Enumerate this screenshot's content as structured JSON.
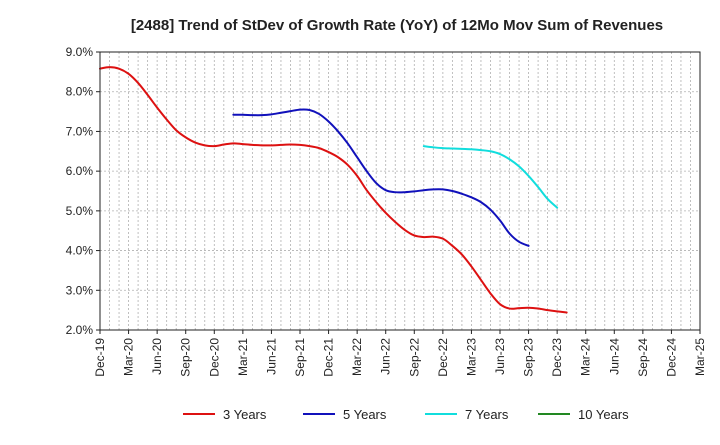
{
  "chart_data": {
    "type": "line",
    "title": "[2488]  Trend of StDev of Growth Rate (YoY) of 12Mo Mov Sum of Revenues",
    "xlabel": "",
    "ylabel": "",
    "ylim": [
      2.0,
      9.0
    ],
    "yticks": [
      "9.0%",
      "8.0%",
      "7.0%",
      "6.0%",
      "5.0%",
      "4.0%",
      "3.0%",
      "2.0%"
    ],
    "ytick_values": [
      9,
      8,
      7,
      6,
      5,
      4,
      3,
      2
    ],
    "xticks": [
      "Dec-19",
      "Mar-20",
      "Jun-20",
      "Sep-20",
      "Dec-20",
      "Mar-21",
      "Jun-21",
      "Sep-21",
      "Dec-21",
      "Mar-22",
      "Jun-22",
      "Sep-22",
      "Dec-22",
      "Mar-23",
      "Jun-23",
      "Sep-23",
      "Dec-23",
      "Mar-24",
      "Jun-24",
      "Sep-24",
      "Dec-24",
      "Mar-25"
    ],
    "grid": true,
    "legend_position": "bottom",
    "series": [
      {
        "name": "3 Years",
        "color": "#dd1111",
        "values": [
          8.58,
          8.62,
          8.58,
          8.45,
          8.22,
          7.92,
          7.6,
          7.3,
          7.03,
          6.85,
          6.72,
          6.65,
          6.63,
          6.67,
          6.7,
          6.68,
          6.66,
          6.65,
          6.65,
          6.66,
          6.67,
          6.66,
          6.63,
          6.58,
          6.48,
          6.35,
          6.16,
          5.88,
          5.52,
          5.22,
          4.95,
          4.72,
          4.52,
          4.38,
          4.34,
          4.35,
          4.3,
          4.12,
          3.9,
          3.6,
          3.26,
          2.92,
          2.65,
          2.54,
          2.55,
          2.56,
          2.54,
          2.5,
          2.47,
          2.44
        ]
      },
      {
        "name": "5 Years",
        "color": "#1111bb",
        "values": [
          null,
          null,
          null,
          null,
          null,
          null,
          null,
          null,
          null,
          null,
          null,
          null,
          null,
          null,
          7.42,
          7.42,
          7.41,
          7.41,
          7.43,
          7.47,
          7.51,
          7.55,
          7.54,
          7.44,
          7.25,
          7.0,
          6.7,
          6.35,
          6.0,
          5.7,
          5.52,
          5.47,
          5.47,
          5.49,
          5.52,
          5.54,
          5.54,
          5.5,
          5.43,
          5.34,
          5.22,
          5.03,
          4.76,
          4.43,
          4.22,
          4.12
        ]
      },
      {
        "name": "7 Years",
        "color": "#11dddd",
        "values": [
          null,
          null,
          null,
          null,
          null,
          null,
          null,
          null,
          null,
          null,
          null,
          null,
          null,
          null,
          null,
          null,
          null,
          null,
          null,
          null,
          null,
          null,
          null,
          null,
          null,
          null,
          null,
          null,
          null,
          null,
          null,
          null,
          null,
          null,
          6.63,
          6.6,
          6.58,
          6.57,
          6.56,
          6.55,
          6.53,
          6.5,
          6.43,
          6.3,
          6.12,
          5.88,
          5.6,
          5.3,
          5.08
        ]
      },
      {
        "name": "10 Years",
        "color": "#228822",
        "values": []
      }
    ]
  }
}
